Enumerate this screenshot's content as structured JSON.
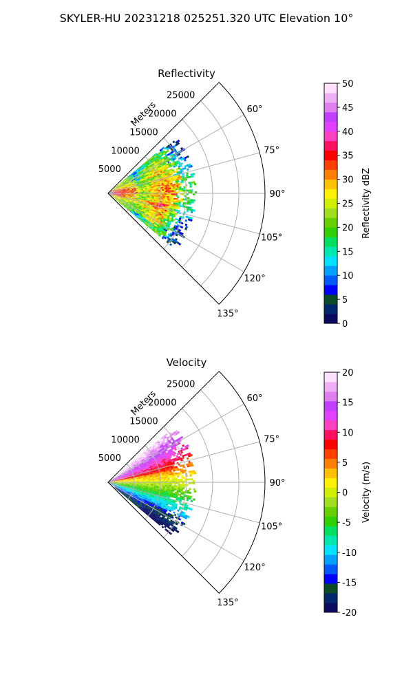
{
  "figure": {
    "title": "SKYLER-HU  20231218  025251.320 UTC Elevation 10°"
  },
  "chart_data": [
    {
      "type": "heatmap",
      "projection": "polar-sector",
      "title": "Reflectivity",
      "range_axis_label": "Meters",
      "range_ticks": [
        "5000",
        "10000",
        "15000",
        "20000",
        "25000"
      ],
      "range_max": 30000,
      "azimuth_range_deg": [
        45,
        135
      ],
      "azimuth_ticks": [
        "60°",
        "75°",
        "90°",
        "105°",
        "120°",
        "135°"
      ],
      "grid": true,
      "data_extent_m": 17000,
      "colorbar": {
        "label": "Reflectivity dBZ",
        "min": 0,
        "max": 50,
        "ticks": [
          "0",
          "5",
          "10",
          "15",
          "20",
          "25",
          "30",
          "35",
          "40",
          "45",
          "50"
        ],
        "colors": [
          "#0a0a60",
          "#00276b",
          "#0c4b28",
          "#0000ff",
          "#0058ff",
          "#00a0ff",
          "#00e0ff",
          "#00e8b0",
          "#00e060",
          "#30d000",
          "#66d000",
          "#a0e020",
          "#d0f000",
          "#fff000",
          "#ffc000",
          "#ff8000",
          "#ff4000",
          "#ff0000",
          "#ff1060",
          "#ff40c0",
          "#e040ff",
          "#c040ff",
          "#e080f0",
          "#f0b0f8",
          "#fce0fc"
        ]
      }
    },
    {
      "type": "heatmap",
      "projection": "polar-sector",
      "title": "Velocity",
      "range_axis_label": "Meters",
      "range_ticks": [
        "5000",
        "10000",
        "15000",
        "20000",
        "25000"
      ],
      "range_max": 30000,
      "azimuth_range_deg": [
        45,
        135
      ],
      "azimuth_ticks": [
        "60°",
        "75°",
        "90°",
        "105°",
        "120°",
        "135°"
      ],
      "grid": true,
      "data_extent_m": 17000,
      "colorbar": {
        "label": "Velocity (m/s)",
        "min": -20,
        "max": 20,
        "ticks": [
          "-20",
          "-15",
          "-10",
          "-5",
          "0",
          "5",
          "10",
          "15",
          "20"
        ],
        "colors": [
          "#0a0a60",
          "#00276b",
          "#0c4b28",
          "#0000ff",
          "#0058ff",
          "#00a0ff",
          "#00e0ff",
          "#00e8b0",
          "#00e060",
          "#30d000",
          "#66d000",
          "#a0e020",
          "#d0f000",
          "#fff000",
          "#ffc000",
          "#ff8000",
          "#ff4000",
          "#ff0000",
          "#ff1060",
          "#ff40c0",
          "#e040ff",
          "#c040ff",
          "#e080f0",
          "#f0b0f8",
          "#fce0fc"
        ]
      }
    }
  ]
}
